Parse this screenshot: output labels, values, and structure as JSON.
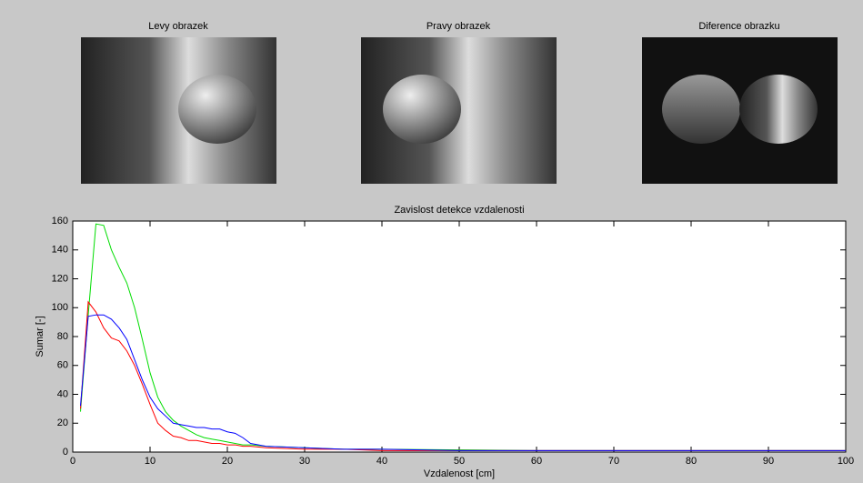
{
  "panels": [
    {
      "title": "Levy obrazek"
    },
    {
      "title": "Pravy obrazek"
    },
    {
      "title": "Diference obrazku"
    }
  ],
  "chart_data": {
    "type": "line",
    "title": "Zavislost detekce vzdalenosti",
    "x_label": "Vzdalenost [cm]",
    "y_label": "Sumar [-]",
    "x": [
      1,
      2,
      3,
      4,
      5,
      6,
      7,
      8,
      9,
      10,
      11,
      12,
      13,
      14,
      15,
      16,
      17,
      18,
      19,
      20,
      21,
      22,
      23,
      25,
      30,
      35,
      40,
      50,
      60,
      70,
      80,
      90,
      100
    ],
    "series": [
      {
        "color": "#00dd00",
        "values": [
          28,
          95,
          158,
          157,
          140,
          128,
          117,
          100,
          78,
          55,
          38,
          28,
          22,
          18,
          15,
          12,
          10,
          9,
          8,
          7,
          6,
          5,
          5,
          4,
          3,
          2,
          2,
          1.5,
          1,
          1,
          1,
          1,
          1
        ]
      },
      {
        "color": "#ff0000",
        "values": [
          30,
          104,
          97,
          86,
          79,
          77,
          70,
          60,
          47,
          33,
          20,
          15,
          11,
          10,
          8,
          8,
          7,
          6,
          6,
          5,
          5,
          4,
          4,
          3,
          2,
          2,
          1,
          1,
          1,
          1,
          1,
          1,
          1
        ]
      },
      {
        "color": "#0000ff",
        "values": [
          32,
          94,
          95,
          95,
          92,
          86,
          78,
          64,
          50,
          38,
          30,
          25,
          20,
          19,
          18,
          17,
          17,
          16,
          16,
          14,
          13,
          10,
          6,
          4,
          3,
          2,
          2,
          1,
          1,
          1,
          1,
          1,
          1
        ]
      }
    ],
    "xlim": [
      0,
      100
    ],
    "xticks": [
      0,
      10,
      20,
      30,
      40,
      50,
      60,
      70,
      80,
      90,
      100
    ],
    "ylim": [
      0,
      160
    ],
    "yticks": [
      0,
      20,
      40,
      60,
      80,
      100,
      120,
      140,
      160
    ],
    "grid": false
  }
}
